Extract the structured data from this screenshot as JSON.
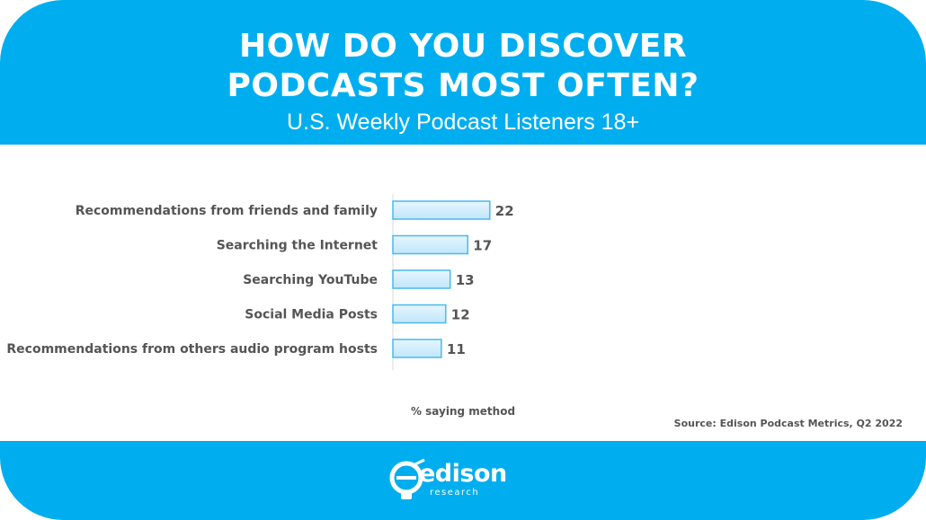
{
  "header": {
    "title": "HOW DO YOU DISCOVER PODCASTS MOST OFTEN?",
    "subtitle": "U.S. Weekly Podcast Listeners 18+"
  },
  "chart_data": {
    "type": "bar",
    "orientation": "horizontal",
    "title": "HOW DO YOU DISCOVER PODCASTS MOST OFTEN?",
    "subtitle": "U.S. Weekly Podcast Listeners 18+",
    "categories": [
      "Recommendations from friends and family",
      "Searching the Internet",
      "Searching YouTube",
      "Social Media Posts",
      "Recommendations from others audio program hosts"
    ],
    "values": [
      22,
      17,
      13,
      12,
      11
    ],
    "xlabel": "% saying method",
    "ylabel": "",
    "xlim": [
      0,
      100
    ],
    "grid": false,
    "bar_color": "#bfe6fb",
    "bar_border_color": "#4cb8ec"
  },
  "source": "Source: Edison Podcast Metrics, Q2 2022",
  "footer": {
    "logo_text": "edison",
    "logo_subtext": "research"
  },
  "colors": {
    "brand": "#00aeef",
    "text": "#555555"
  }
}
